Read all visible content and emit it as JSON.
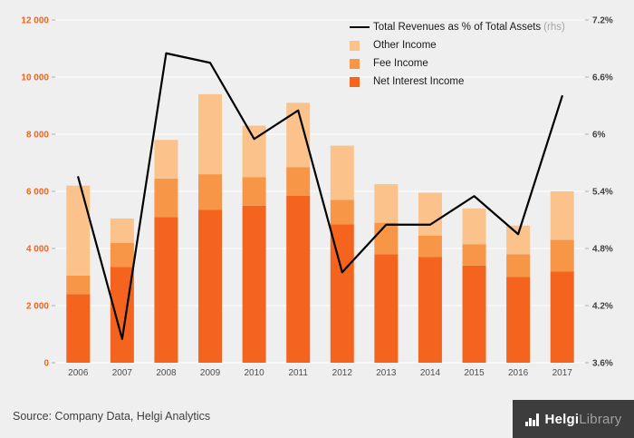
{
  "chart_data": {
    "type": "bar+line",
    "categories": [
      "2006",
      "2007",
      "2008",
      "2009",
      "2010",
      "2011",
      "2012",
      "2013",
      "2014",
      "2015",
      "2016",
      "2017"
    ],
    "series": [
      {
        "name": "Net Interest Income",
        "color": "#f4641e",
        "values": [
          2400,
          3350,
          5100,
          5350,
          5500,
          5850,
          4850,
          3800,
          3700,
          3400,
          3000,
          3200
        ]
      },
      {
        "name": "Fee Income",
        "color": "#f79646",
        "values": [
          650,
          850,
          1350,
          1250,
          1000,
          1000,
          850,
          1100,
          750,
          750,
          800,
          1100
        ]
      },
      {
        "name": "Other Income",
        "color": "#fbc38b",
        "values": [
          3150,
          850,
          1350,
          2800,
          1800,
          2250,
          1900,
          1350,
          1500,
          1250,
          1000,
          1700
        ]
      }
    ],
    "line_series": {
      "name": "Total Revenues as % of Total Assets",
      "suffix": "(rhs)",
      "color": "#000000",
      "values": [
        5.55,
        3.85,
        6.85,
        6.75,
        5.95,
        6.25,
        4.55,
        5.05,
        5.05,
        5.35,
        4.95,
        6.4
      ]
    },
    "left_axis": {
      "min": 0,
      "max": 12000,
      "color": "#f4641e",
      "ticks": [
        "0",
        "2 000",
        "4 000",
        "6 000",
        "8 000",
        "10 000",
        "12 000"
      ]
    },
    "right_axis": {
      "min": 3.6,
      "max": 7.2,
      "color": "#404040",
      "ticks": [
        "3.6%",
        "4.2%",
        "4.8%",
        "5.4%",
        "6%",
        "6.6%",
        "7.2%"
      ]
    },
    "grid": true,
    "legend_position": "top-right"
  },
  "legend": {
    "items": [
      {
        "type": "line",
        "label": "Total Revenues as % of Total Assets",
        "suffix": "(rhs)",
        "color": "#000000"
      },
      {
        "type": "square",
        "label": "Other Income",
        "color": "#fbc38b"
      },
      {
        "type": "square",
        "label": "Fee Income",
        "color": "#f79646"
      },
      {
        "type": "square",
        "label": "Net Interest Income",
        "color": "#f4641e"
      }
    ]
  },
  "footer": {
    "source": "Source: Company Data, Helgi Analytics",
    "brand_helgi": "Helgi",
    "brand_library": "Library"
  }
}
